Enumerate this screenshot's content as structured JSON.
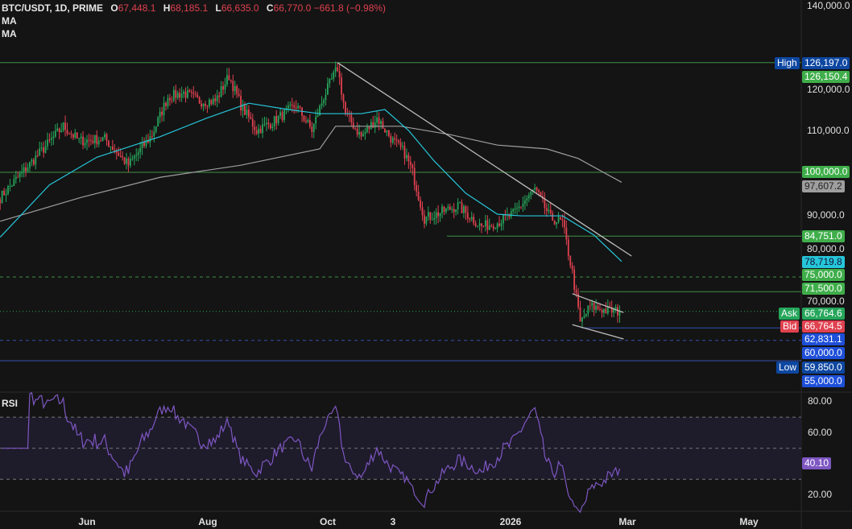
{
  "header": {
    "symbol": "BTC/USDT, 1D, PRIME",
    "open_label": "O",
    "open": "67,448.1",
    "high_label": "H",
    "high": "68,185.1",
    "low_label": "L",
    "low": "66,635.0",
    "close_label": "C",
    "close": "66,770.0",
    "change": "−661.8 (−0.98%)",
    "ma1": "MA",
    "ma2": "MA"
  },
  "rsi": {
    "title": "RSI",
    "value": "40.10",
    "ticks": [
      "80.00",
      "60.00",
      "20.00"
    ]
  },
  "price_axis": {
    "ticks": [
      "140,000.0",
      "120,000.0",
      "110,000.0",
      "90,000.0",
      "80,000.0",
      "70,000.0"
    ]
  },
  "tags": {
    "high_label": "High",
    "high": "126,197.0",
    "last_high": "126,150.4",
    "level_100k": "100,000.0",
    "ma_slow": "97,607.2",
    "level_84k": "84,751.0",
    "ma_fast": "78,719.8",
    "level_75k": "75,000.0",
    "level_71k": "71,500.0",
    "ask_label": "Ask",
    "ask": "66,764.6",
    "bid_label": "Bid",
    "bid": "66,764.5",
    "level_62k": "62,831.1",
    "level_60k": "60,000.0",
    "low_label": "Low",
    "low": "59,850.0",
    "level_55k": "55,000.0"
  },
  "time_axis": [
    "Jun",
    "Aug",
    "Oct",
    "3",
    "2026",
    "Mar",
    "May"
  ],
  "colors": {
    "up": "#26a65b",
    "down": "#e0414f",
    "ma_fast": "#26c6da",
    "ma_slow": "#9e9e9e",
    "rsi": "#7e57c2",
    "level": "#4caf50",
    "blue": "#1e4fd8"
  },
  "chart_data": {
    "type": "candlestick",
    "interval": "1D",
    "y_range": [
      53000,
      141000
    ],
    "close_path": [
      [
        "2025-04-18",
        94000
      ],
      [
        "2025-05-08",
        104600
      ],
      [
        "2025-05-20",
        111000
      ],
      [
        "2025-05-28",
        107500
      ],
      [
        "2025-06-10",
        108000
      ],
      [
        "2025-06-22",
        101700
      ],
      [
        "2025-07-04",
        109000
      ],
      [
        "2025-07-12",
        118000
      ],
      [
        "2025-07-20",
        119000
      ],
      [
        "2025-07-28",
        117000
      ],
      [
        "2025-08-05",
        117000
      ],
      [
        "2025-08-12",
        123000
      ],
      [
        "2025-08-18",
        116000
      ],
      [
        "2025-08-26",
        110000
      ],
      [
        "2025-09-03",
        112000
      ],
      [
        "2025-09-15",
        116000
      ],
      [
        "2025-09-23",
        110000
      ],
      [
        "2025-09-29",
        118000
      ],
      [
        "2025-10-06",
        125000
      ],
      [
        "2025-10-10",
        114000
      ],
      [
        "2025-10-18",
        108500
      ],
      [
        "2025-10-26",
        113000
      ],
      [
        "2025-11-03",
        107500
      ],
      [
        "2025-11-09",
        104600
      ],
      [
        "2025-11-13",
        100000
      ],
      [
        "2025-11-19",
        89000
      ],
      [
        "2025-11-25",
        90000
      ],
      [
        "2025-12-06",
        92000
      ],
      [
        "2025-12-18",
        87000
      ],
      [
        "2025-12-26",
        88000
      ],
      [
        "2026-01-03",
        90000
      ],
      [
        "2026-01-14",
        96000
      ],
      [
        "2026-01-22",
        89000
      ],
      [
        "2026-01-28",
        88000
      ],
      [
        "2026-02-02",
        76000
      ],
      [
        "2026-02-06",
        64000
      ],
      [
        "2026-02-11",
        68000
      ],
      [
        "2026-02-19",
        67000
      ],
      [
        "2026-02-26",
        66770
      ]
    ],
    "ma_fast": [
      [
        "2025-04-18",
        84500
      ],
      [
        "2025-05-13",
        97000
      ],
      [
        "2025-06-06",
        103600
      ],
      [
        "2025-07-08",
        108500
      ],
      [
        "2025-08-01",
        113000
      ],
      [
        "2025-08-22",
        116500
      ],
      [
        "2025-09-11",
        115000
      ],
      [
        "2025-09-27",
        114000
      ],
      [
        "2025-10-18",
        114000
      ],
      [
        "2025-10-30",
        115000
      ],
      [
        "2025-11-11",
        110000
      ],
      [
        "2025-11-24",
        102700
      ],
      [
        "2025-12-10",
        95000
      ],
      [
        "2025-12-26",
        90000
      ],
      [
        "2026-01-07",
        89600
      ],
      [
        "2026-01-28",
        89600
      ],
      [
        "2026-02-13",
        85000
      ],
      [
        "2026-02-27",
        78719.8
      ]
    ],
    "ma_slow": [
      [
        "2025-04-18",
        88300
      ],
      [
        "2025-05-29",
        94000
      ],
      [
        "2025-07-08",
        98800
      ],
      [
        "2025-08-18",
        101700
      ],
      [
        "2025-09-27",
        105600
      ],
      [
        "2025-10-05",
        111000
      ],
      [
        "2025-11-07",
        111000
      ],
      [
        "2025-12-02",
        109000
      ],
      [
        "2025-12-26",
        106500
      ],
      [
        "2026-01-20",
        105600
      ],
      [
        "2026-02-05",
        103300
      ],
      [
        "2026-02-27",
        97607.2
      ]
    ],
    "levels": [
      126197,
      100000,
      84751,
      75000,
      71500,
      62831.1,
      59850,
      55000
    ],
    "trendlines": [
      [
        [
          "2025-10-06",
          126197
        ],
        [
          "2026-03-04",
          80000
        ]
      ],
      [
        [
          "2026-02-02",
          71000
        ],
        [
          "2026-02-28",
          66500
        ]
      ],
      [
        [
          "2026-02-02",
          63600
        ],
        [
          "2026-02-28",
          60200
        ]
      ]
    ],
    "rsi_levels": [
      70,
      50,
      30
    ],
    "rsi_last": 40.1
  }
}
